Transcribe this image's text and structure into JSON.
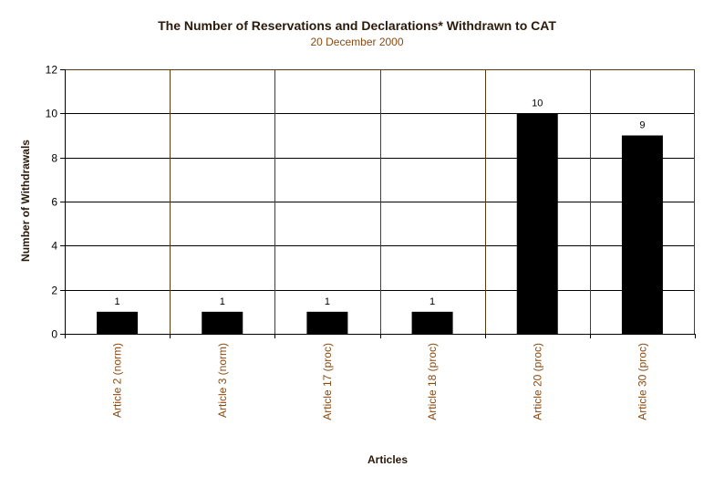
{
  "chart_data": {
    "type": "bar",
    "title": "The Number of Reservations and Declarations* Withdrawn to CAT",
    "subtitle": "20 December 2000",
    "xlabel": "Articles",
    "ylabel": "Number of Withdrawals",
    "categories": [
      "Article 2 (norm)",
      "Article 3 (norm)",
      "Article 17 (proc)",
      "Article 18 (proc)",
      "Article 20 (proc)",
      "Article 30 (proc)"
    ],
    "values": [
      1,
      1,
      1,
      1,
      10,
      9
    ],
    "data_labels": [
      "1",
      "1",
      "1",
      "1",
      "10",
      "9"
    ],
    "ylim": [
      0,
      12
    ],
    "yticks": [
      0,
      2,
      4,
      6,
      8,
      10,
      12
    ],
    "grid": true,
    "legend": "none",
    "colors": {
      "bar": "#000000",
      "horizontal_grid": "#000000",
      "vertical_grid": "#5a3a10",
      "category_text": "#8b4a10",
      "data_label_highlight": "#8b4a10"
    }
  }
}
